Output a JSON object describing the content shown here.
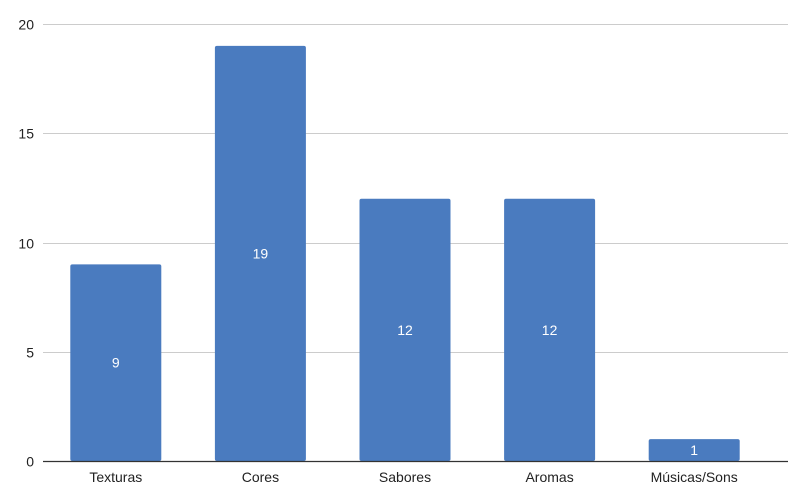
{
  "chart_data": {
    "type": "bar",
    "title": "",
    "xlabel": "",
    "ylabel": "",
    "categories": [
      "Texturas",
      "Cores",
      "Sabores",
      "Aromas",
      "Músicas/Sons"
    ],
    "values": [
      9,
      19,
      12,
      12,
      1
    ],
    "data_labels": [
      "9",
      "19",
      "12",
      "12",
      "1"
    ],
    "ylim": [
      0,
      20
    ],
    "yticks": [
      0,
      5,
      10,
      15,
      20
    ],
    "ytick_labels": [
      "0",
      "5",
      "10",
      "15",
      "20"
    ],
    "grid": true,
    "legend": "none",
    "colors": {
      "bar": "#4a7bbf",
      "grid": "#cccccc",
      "axis": "#333333",
      "tick_label": "#222222",
      "data_label": "#ffffff"
    }
  }
}
